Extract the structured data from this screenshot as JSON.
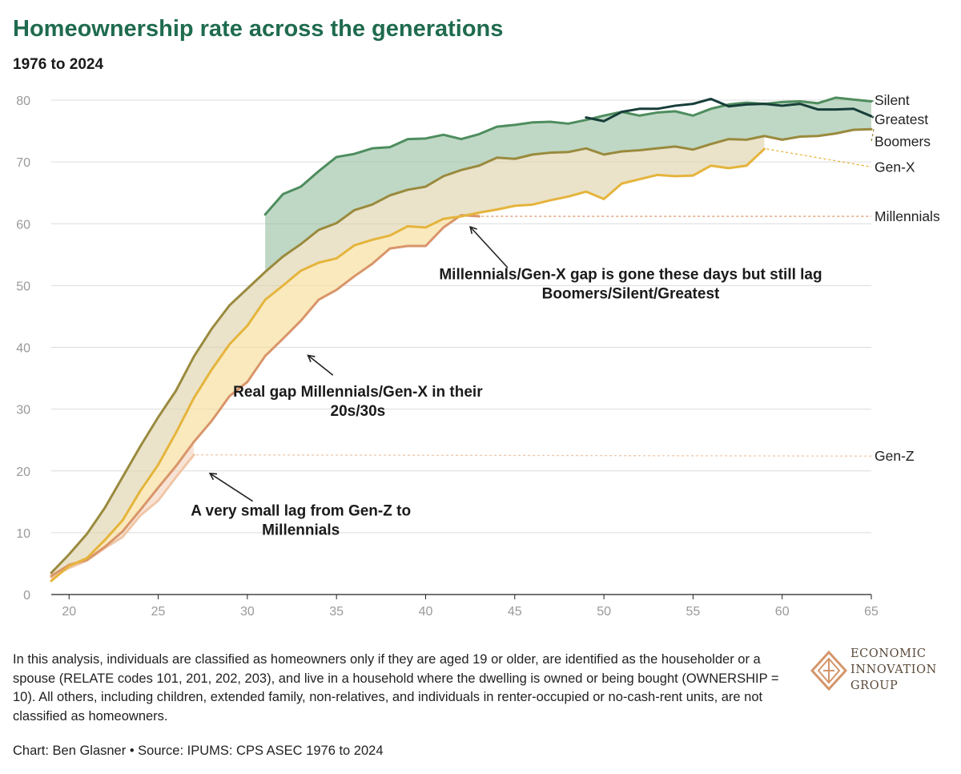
{
  "header": {
    "title": "Homeownership rate across the generations",
    "subtitle": "1976 to 2024"
  },
  "footer": {
    "note": "In this analysis, individuals are classified as homeowners only if they are aged 19 or older, are identified as the householder or a spouse (RELATE codes 101, 201, 202, 203), and live in a household where the dwelling is owned or being bought (OWNERSHIP = 10). All others, including children, extended family, non-relatives, and individuals in renter-occupied or no-cash-rent units, are not classified as homeowners.",
    "source": "Chart: Ben Glasner • Source: IPUMS: CPS ASEC 1976 to 2024"
  },
  "logo": {
    "text": "ECONOMIC\nINNOVATION\nGROUP",
    "color": "#d4956a"
  },
  "chart_data": {
    "type": "line",
    "xlim": [
      19,
      65
    ],
    "ylim": [
      0,
      80
    ],
    "x_ticks": [
      20,
      25,
      30,
      35,
      40,
      45,
      50,
      55,
      60,
      65
    ],
    "y_ticks": [
      0,
      10,
      20,
      30,
      40,
      50,
      60,
      70,
      80
    ],
    "grid": "horizontal",
    "series": [
      {
        "name": "Silent",
        "color": "#4e8d5e",
        "x": [
          31,
          32,
          33,
          34,
          35,
          36,
          37,
          38,
          39,
          40,
          41,
          42,
          43,
          44,
          45,
          46,
          47,
          48,
          49,
          50,
          51,
          52,
          53,
          54,
          55,
          56,
          57,
          58,
          59,
          60,
          61,
          62,
          63,
          64,
          65
        ],
        "y": [
          61.5,
          64.8,
          66,
          68.5,
          70.8,
          71.3,
          72.2,
          72.4,
          73.7,
          73.8,
          74.4,
          73.7,
          74.5,
          75.7,
          76,
          76.4,
          76.5,
          76.2,
          76.8,
          77.5,
          78.1,
          77.5,
          78,
          78.2,
          77.5,
          78.6,
          79.3,
          79.6,
          79.4,
          79.7,
          79.8,
          79.5,
          80.4,
          80.1,
          79.8
        ]
      },
      {
        "name": "Greatest",
        "color": "#173e3a",
        "x": [
          49,
          50,
          51,
          52,
          53,
          54,
          55,
          56,
          57,
          58,
          59,
          60,
          61,
          62,
          63,
          64,
          65
        ],
        "y": [
          77.2,
          76.6,
          78.1,
          78.6,
          78.6,
          79.1,
          79.4,
          80.2,
          79,
          79.3,
          79.4,
          79.1,
          79.4,
          78.5,
          78.5,
          78.6,
          77.4
        ]
      },
      {
        "name": "Boomers",
        "color": "#9a8a3e",
        "x": [
          19,
          20,
          21,
          22,
          23,
          24,
          25,
          26,
          27,
          28,
          29,
          30,
          31,
          32,
          33,
          34,
          35,
          36,
          37,
          38,
          39,
          40,
          41,
          42,
          43,
          44,
          45,
          46,
          47,
          48,
          49,
          50,
          51,
          52,
          53,
          54,
          55,
          56,
          57,
          58,
          59,
          60,
          61,
          62,
          63,
          64,
          65
        ],
        "y": [
          3.5,
          6.5,
          9.8,
          14,
          19,
          24,
          28.7,
          33,
          38.5,
          43,
          46.8,
          49.5,
          52.2,
          54.7,
          56.7,
          59,
          60.1,
          62.2,
          63.1,
          64.6,
          65.5,
          66,
          67.7,
          68.7,
          69.4,
          70.7,
          70.5,
          71.2,
          71.5,
          71.6,
          72.2,
          71.2,
          71.7,
          71.9,
          72.2,
          72.5,
          72,
          72.9,
          73.7,
          73.6,
          74.2,
          73.6,
          74.1,
          74.2,
          74.6,
          75.2,
          75.3
        ]
      },
      {
        "name": "Gen-X",
        "color": "#e5b43c",
        "x": [
          19,
          20,
          21,
          22,
          23,
          24,
          25,
          26,
          27,
          28,
          29,
          30,
          31,
          32,
          33,
          34,
          35,
          36,
          37,
          38,
          39,
          40,
          41,
          42,
          43,
          44,
          45,
          46,
          47,
          48,
          49,
          50,
          51,
          52,
          53,
          54,
          55,
          56,
          57,
          58,
          59
        ],
        "y": [
          2.2,
          4.6,
          5.9,
          8.8,
          12,
          16.8,
          21,
          26.2,
          31.8,
          36.4,
          40.5,
          43.5,
          47.7,
          50,
          52.4,
          53.7,
          54.4,
          56.5,
          57.4,
          58.1,
          59.6,
          59.4,
          60.8,
          61.2,
          61.8,
          62.3,
          62.9,
          63.1,
          63.8,
          64.4,
          65.2,
          64,
          66.5,
          67.2,
          67.9,
          67.7,
          67.8,
          69.4,
          69,
          69.4,
          72.1
        ]
      },
      {
        "name": "Millennials",
        "color": "#d9956a",
        "x": [
          19,
          20,
          21,
          22,
          23,
          24,
          25,
          26,
          27,
          28,
          29,
          30,
          31,
          32,
          33,
          34,
          35,
          36,
          37,
          38,
          39,
          40,
          41,
          42,
          43
        ],
        "y": [
          3,
          4.8,
          5.6,
          7.7,
          10.2,
          13.7,
          17.3,
          20.8,
          24.7,
          28.1,
          32.1,
          34.4,
          38.6,
          41.4,
          44.3,
          47.7,
          49.3,
          51.5,
          53.5,
          56,
          56.4,
          56.4,
          59.4,
          61.4,
          61.2
        ]
      },
      {
        "name": "Gen-Z",
        "color": "#f0c6a6",
        "x": [
          19,
          20,
          21,
          22,
          23,
          24,
          25,
          26,
          27
        ],
        "y": [
          2.8,
          4.3,
          5.5,
          7.5,
          9.3,
          12.8,
          15.2,
          19,
          22.6
        ]
      }
    ],
    "gap_bands": [
      {
        "upper": "Silent",
        "lower": "Boomers",
        "color": "#98c0a2"
      },
      {
        "upper": "Boomers",
        "lower": "Gen-X",
        "color": "#ddd2aa"
      },
      {
        "upper": "Gen-X",
        "lower": "Millennials",
        "color": "#f5dc94"
      },
      {
        "upper": "Millennials",
        "lower": "Gen-Z",
        "color": "#f4d4bd"
      }
    ],
    "end_labels": [
      {
        "series": "Silent",
        "text": "Silent",
        "label_y": 80
      },
      {
        "series": "Greatest",
        "text": "Greatest",
        "label_y": 76.9
      },
      {
        "series": "Boomers",
        "text": "Boomers",
        "label_y": 73.3
      },
      {
        "series": "Gen-X",
        "text": "Gen-X",
        "label_y": 69.2
      },
      {
        "series": "Millennials",
        "text": "Millennials",
        "label_y": 61.2
      },
      {
        "series": "Gen-Z",
        "text": "Gen-Z",
        "label_y": 22.4
      }
    ],
    "annotations": [
      {
        "lines": [
          "Millennials/Gen-X gap is gone these days but still lag",
          "Boomers/Silent/Greatest"
        ],
        "text_x": 51.5,
        "text_y": 51,
        "arrow_from": [
          44.6,
          52.9
        ],
        "arrow_to": [
          42.5,
          59.5
        ]
      },
      {
        "lines": [
          "Real gap Millennials/Gen-X in their",
          "20s/30s"
        ],
        "text_x": 36.2,
        "text_y": 32,
        "arrow_from": [
          34.8,
          35.5
        ],
        "arrow_to": [
          33.4,
          38.7
        ]
      },
      {
        "lines": [
          "A very small lag from Gen-Z to",
          "Millennials"
        ],
        "text_x": 33,
        "text_y": 12.8,
        "arrow_from": [
          30.3,
          15.1
        ],
        "arrow_to": [
          27.9,
          19.6
        ]
      }
    ]
  }
}
